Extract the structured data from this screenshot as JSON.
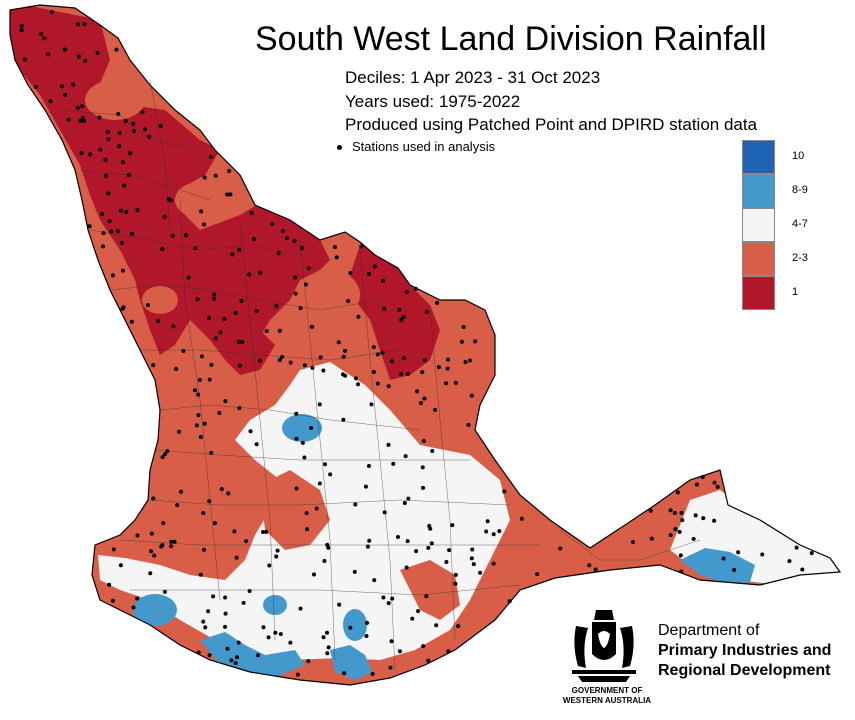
{
  "title": "South West Land Division Rainfall",
  "subtitle_lines": [
    "Deciles:  1 Apr 2023 - 31 Oct 2023",
    "Years used: 1975-2022",
    "Produced using Patched Point and DPIRD station data"
  ],
  "stations_note": "Stations used in analysis",
  "legend": [
    {
      "label": "10",
      "color": "#1f63b5"
    },
    {
      "label": "8-9",
      "color": "#4499cc"
    },
    {
      "label": "4-7",
      "color": "#f5f5f5"
    },
    {
      "label": "2-3",
      "color": "#d95e48"
    },
    {
      "label": "1",
      "color": "#b0172a"
    }
  ],
  "department": {
    "line1": "Department of",
    "line2": "Primary Industries and",
    "line3": "Regional Development"
  },
  "government": {
    "line1": "GOVERNMENT OF",
    "line2": "WESTERN AUSTRALIA"
  },
  "crest_icon": "coat-of-arms-icon"
}
